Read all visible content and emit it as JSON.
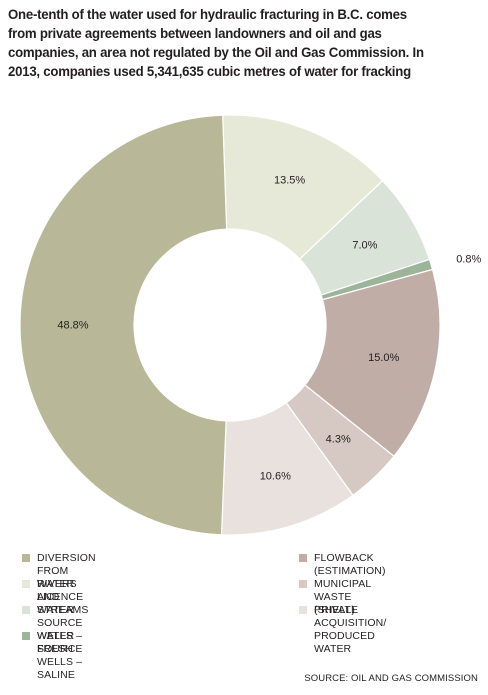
{
  "title_lines": [
    "One-tenth of the water used for hydraulic fracturing in B.C. comes",
    "from private agreements between landowners and oil and gas",
    "companies, an area not regulated by the Oil and Gas Commission. In",
    "2013, companies used 5,341,635 cubic metres of water for fracking"
  ],
  "chart_data": {
    "type": "pie",
    "donut": true,
    "title": "One-tenth of the water used for hydraulic fracturing in B.C. comes from private agreements between landowners and oil and gas companies, an area not regulated by the Oil and Gas Commission. In 2013, companies used 5,341,635 cubic metres of water for fracking",
    "legend_position": "bottom",
    "slices": [
      {
        "label": "WATER LICENCE",
        "value": 13.5,
        "display": "13.5%",
        "color": "#e6e8d8"
      },
      {
        "label": "WATER SOURCE WELLS – FRESH",
        "value": 7.0,
        "display": "7.0%",
        "color": "#d9e3d8"
      },
      {
        "label": "WATER SOURCE WELLS – SALINE",
        "value": 0.8,
        "display": "0.8%",
        "color": "#9cb59a"
      },
      {
        "label": "FLOWBACK (ESTIMATION)",
        "value": 15.0,
        "display": "15.0%",
        "color": "#bfada6"
      },
      {
        "label": "MUNICIPAL WASTE (SHELL)",
        "value": 4.3,
        "display": "4.3%",
        "color": "#d6c8c2"
      },
      {
        "label": "PRIVATE ACQUISITION/\nPRODUCED WATER",
        "value": 10.6,
        "display": "10.6%",
        "color": "#e9e1de"
      },
      {
        "label": "DIVERSION FROM RIVERS AND STREAMS",
        "value": 48.8,
        "display": "48.8%",
        "color": "#b8b898"
      }
    ]
  },
  "legend": {
    "left": [
      {
        "label": "DIVERSION FROM RIVERS AND STREAMS",
        "color": "#b8b898"
      },
      {
        "label": "WATER LICENCE",
        "color": "#e6e8d8"
      },
      {
        "label": "WATER SOURCE WELLS – FRESH",
        "color": "#d9e3d8"
      },
      {
        "label": "WATER SOURCE WELLS – SALINE",
        "color": "#9cb59a"
      }
    ],
    "right": [
      {
        "label": "FLOWBACK (ESTIMATION)",
        "color": "#bfada6"
      },
      {
        "label": "MUNICIPAL WASTE (SHELL)",
        "color": "#d6c8c2"
      },
      {
        "label": "PRIVATE ACQUISITION/\nPRODUCED WATER",
        "color": "#e9e1de"
      }
    ]
  },
  "source": "SOURCE: OIL AND GAS COMMISSION"
}
